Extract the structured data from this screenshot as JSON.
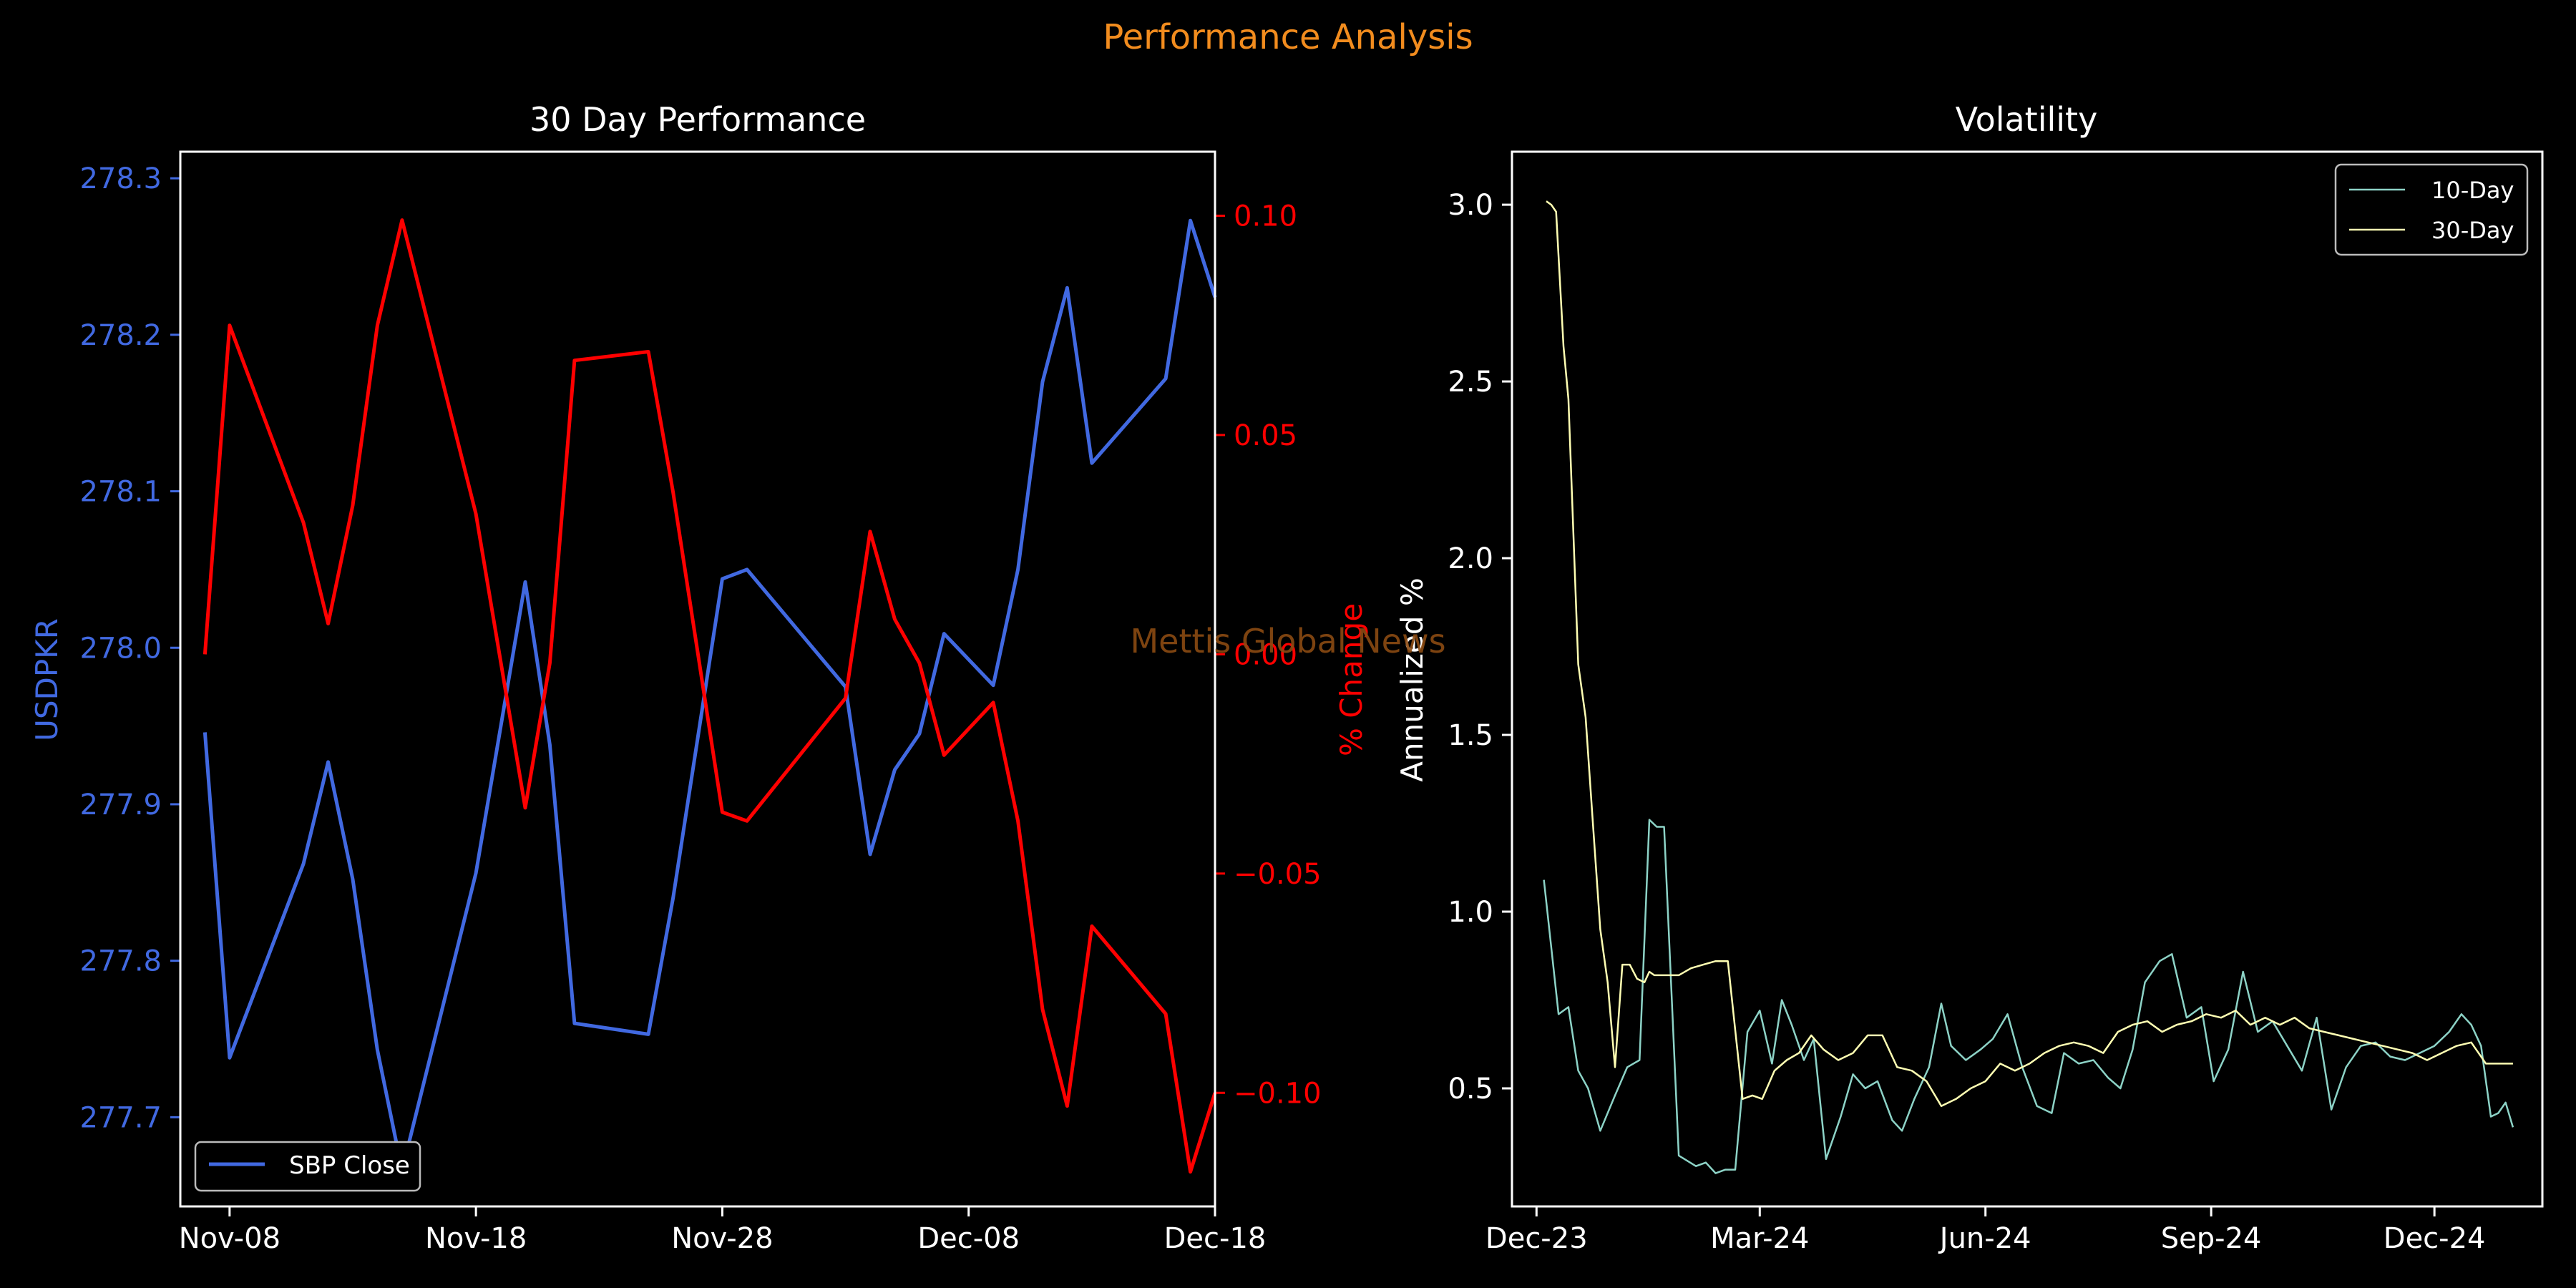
{
  "suptitle": "Performance Analysis",
  "watermark": "Mettis Global News",
  "colors": {
    "background": "#000000",
    "axes": "#ffffff",
    "price": "#4169e1",
    "change": "#ff0000",
    "title": "#f28c1e",
    "watermark": "#8b4a12",
    "vol10": "#8dd3c7",
    "vol30": "#ffffb3"
  },
  "chart_data": [
    {
      "type": "line",
      "title": "30 Day Performance",
      "ylabel": "USDPKR",
      "y2label": "% Change",
      "ylim": [
        277.643,
        278.317
      ],
      "y2lim": [
        -0.1259,
        0.1146
      ],
      "yticks": [
        "277.7",
        "277.8",
        "277.9",
        "278.0",
        "278.1",
        "278.2",
        "278.3"
      ],
      "y2ticks": [
        "−0.10",
        "−0.05",
        "0.00",
        "0.05",
        "0.10"
      ],
      "xticks": [
        "Nov-08",
        "Nov-18",
        "Nov-28",
        "Dec-08",
        "Dec-18"
      ],
      "xlim": [
        "2024-11-06",
        "2024-12-18"
      ],
      "legend": "lower-left",
      "series": [
        {
          "name": "SBP Close",
          "axis": "left",
          "x": [
            "2024-11-07",
            "2024-11-08",
            "2024-11-11",
            "2024-11-12",
            "2024-11-13",
            "2024-11-14",
            "2024-11-15",
            "2024-11-18",
            "2024-11-20",
            "2024-11-21",
            "2024-11-22",
            "2024-11-25",
            "2024-11-26",
            "2024-11-28",
            "2024-11-29",
            "2024-12-03",
            "2024-12-04",
            "2024-12-05",
            "2024-12-06",
            "2024-12-07",
            "2024-12-09",
            "2024-12-10",
            "2024-12-11",
            "2024-12-12",
            "2024-12-13",
            "2024-12-16",
            "2024-12-17",
            "2024-12-18"
          ],
          "values": [
            277.946,
            277.738,
            277.862,
            277.927,
            277.852,
            277.743,
            277.666,
            277.856,
            278.042,
            277.938,
            277.76,
            277.753,
            277.84,
            278.044,
            278.05,
            277.975,
            277.868,
            277.922,
            277.945,
            278.009,
            277.976,
            278.05,
            278.17,
            278.23,
            278.118,
            278.172,
            278.273,
            278.224
          ]
        },
        {
          "name": "% Change",
          "axis": "right",
          "x": [
            "2024-11-07",
            "2024-11-08",
            "2024-11-11",
            "2024-11-12",
            "2024-11-13",
            "2024-11-14",
            "2024-11-15",
            "2024-11-18",
            "2024-11-20",
            "2024-11-21",
            "2024-11-22",
            "2024-11-25",
            "2024-11-26",
            "2024-11-28",
            "2024-11-29",
            "2024-12-03",
            "2024-12-04",
            "2024-12-05",
            "2024-12-06",
            "2024-12-07",
            "2024-12-09",
            "2024-12-10",
            "2024-12-11",
            "2024-12-12",
            "2024-12-13",
            "2024-12-16",
            "2024-12-17",
            "2024-12-18"
          ],
          "values": [
            0.0,
            0.075,
            0.03,
            0.007,
            0.034,
            0.075,
            0.099,
            0.032,
            -0.035,
            -0.002,
            0.067,
            0.069,
            0.037,
            -0.036,
            -0.038,
            -0.01,
            0.028,
            0.008,
            -0.002,
            -0.023,
            -0.011,
            -0.038,
            -0.081,
            -0.103,
            -0.062,
            -0.082,
            -0.118,
            -0.1
          ]
        }
      ]
    },
    {
      "type": "line",
      "title": "Volatility",
      "ylabel": "Annualized %",
      "ylim": [
        0.166,
        3.15
      ],
      "yticks": [
        "0.5",
        "1.0",
        "1.5",
        "2.0",
        "2.5",
        "3.0"
      ],
      "xticks": [
        "Dec-23",
        "Mar-24",
        "Jun-24",
        "Sep-24",
        "Dec-24"
      ],
      "xlim": [
        "2023-11-21",
        "2025-01-14"
      ],
      "legend": "upper-right",
      "series": [
        {
          "name": "10-Day",
          "x": [
            "2023-12-04",
            "2023-12-10",
            "2023-12-14",
            "2023-12-18",
            "2023-12-22",
            "2023-12-27",
            "2024-01-02",
            "2024-01-07",
            "2024-01-12",
            "2024-01-16",
            "2024-01-19",
            "2024-01-22",
            "2024-01-28",
            "2024-02-04",
            "2024-02-08",
            "2024-02-12",
            "2024-02-16",
            "2024-02-20",
            "2024-02-25",
            "2024-03-01",
            "2024-03-06",
            "2024-03-10",
            "2024-03-14",
            "2024-03-19",
            "2024-03-23",
            "2024-03-28",
            "2024-04-03",
            "2024-04-08",
            "2024-04-13",
            "2024-04-18",
            "2024-04-24",
            "2024-04-28",
            "2024-05-03",
            "2024-05-09",
            "2024-05-14",
            "2024-05-18",
            "2024-05-24",
            "2024-05-30",
            "2024-06-04",
            "2024-06-10",
            "2024-06-16",
            "2024-06-22",
            "2024-06-28",
            "2024-07-03",
            "2024-07-09",
            "2024-07-15",
            "2024-07-21",
            "2024-07-26",
            "2024-07-31",
            "2024-08-05",
            "2024-08-11",
            "2024-08-16",
            "2024-08-22",
            "2024-08-28",
            "2024-09-02",
            "2024-09-08",
            "2024-09-14",
            "2024-09-20",
            "2024-09-26",
            "2024-10-02",
            "2024-10-08",
            "2024-10-14",
            "2024-10-20",
            "2024-10-26",
            "2024-11-01",
            "2024-11-07",
            "2024-11-13",
            "2024-11-19",
            "2024-11-25",
            "2024-12-01",
            "2024-12-07",
            "2024-12-12",
            "2024-12-16",
            "2024-12-20",
            "2024-12-24",
            "2024-12-27",
            "2024-12-30",
            "2025-01-02"
          ],
          "values": [
            1.09,
            0.71,
            0.73,
            0.55,
            0.5,
            0.38,
            0.48,
            0.56,
            0.58,
            1.26,
            1.24,
            1.24,
            0.31,
            0.28,
            0.29,
            0.26,
            0.27,
            0.27,
            0.66,
            0.72,
            0.57,
            0.75,
            0.68,
            0.58,
            0.64,
            0.3,
            0.42,
            0.54,
            0.5,
            0.52,
            0.41,
            0.38,
            0.47,
            0.56,
            0.74,
            0.62,
            0.58,
            0.61,
            0.64,
            0.71,
            0.56,
            0.45,
            0.43,
            0.6,
            0.57,
            0.58,
            0.53,
            0.5,
            0.61,
            0.8,
            0.86,
            0.88,
            0.7,
            0.73,
            0.52,
            0.61,
            0.83,
            0.66,
            0.69,
            0.62,
            0.55,
            0.7,
            0.44,
            0.56,
            0.62,
            0.63,
            0.59,
            0.58,
            0.6,
            0.62,
            0.66,
            0.71,
            0.68,
            0.62,
            0.42,
            0.43,
            0.46,
            0.39
          ]
        },
        {
          "name": "30-Day",
          "x": [
            "2023-12-05",
            "2023-12-07",
            "2023-12-09",
            "2023-12-12",
            "2023-12-14",
            "2023-12-18",
            "2023-12-21",
            "2023-12-24",
            "2023-12-27",
            "2023-12-30",
            "2024-01-02",
            "2024-01-05",
            "2024-01-08",
            "2024-01-11",
            "2024-01-14",
            "2024-01-16",
            "2024-01-18",
            "2024-01-23",
            "2024-01-28",
            "2024-02-02",
            "2024-02-07",
            "2024-02-12",
            "2024-02-17",
            "2024-02-23",
            "2024-02-27",
            "2024-03-02",
            "2024-03-07",
            "2024-03-12",
            "2024-03-17",
            "2024-03-22",
            "2024-03-27",
            "2024-04-02",
            "2024-04-08",
            "2024-04-14",
            "2024-04-20",
            "2024-04-26",
            "2024-05-02",
            "2024-05-08",
            "2024-05-14",
            "2024-05-20",
            "2024-05-26",
            "2024-06-01",
            "2024-06-07",
            "2024-06-13",
            "2024-06-19",
            "2024-06-25",
            "2024-07-01",
            "2024-07-07",
            "2024-07-13",
            "2024-07-19",
            "2024-07-25",
            "2024-07-31",
            "2024-08-06",
            "2024-08-12",
            "2024-08-18",
            "2024-08-24",
            "2024-08-30",
            "2024-09-05",
            "2024-09-11",
            "2024-09-17",
            "2024-09-23",
            "2024-09-29",
            "2024-10-05",
            "2024-10-11",
            "2024-10-17",
            "2024-10-23",
            "2024-10-29",
            "2024-11-04",
            "2024-11-10",
            "2024-11-16",
            "2024-11-22",
            "2024-11-28",
            "2024-12-04",
            "2024-12-10",
            "2024-12-16",
            "2024-12-22",
            "2024-12-28",
            "2025-01-02"
          ],
          "values": [
            3.01,
            3.0,
            2.98,
            2.6,
            2.45,
            1.7,
            1.55,
            1.25,
            0.95,
            0.8,
            0.56,
            0.85,
            0.85,
            0.81,
            0.8,
            0.83,
            0.82,
            0.82,
            0.82,
            0.84,
            0.85,
            0.86,
            0.86,
            0.47,
            0.48,
            0.47,
            0.55,
            0.58,
            0.6,
            0.65,
            0.61,
            0.58,
            0.6,
            0.65,
            0.65,
            0.56,
            0.55,
            0.52,
            0.45,
            0.47,
            0.5,
            0.52,
            0.57,
            0.55,
            0.57,
            0.6,
            0.62,
            0.63,
            0.62,
            0.6,
            0.66,
            0.68,
            0.69,
            0.66,
            0.68,
            0.69,
            0.71,
            0.7,
            0.72,
            0.68,
            0.7,
            0.68,
            0.7,
            0.67,
            0.66,
            0.65,
            0.64,
            0.63,
            0.62,
            0.61,
            0.6,
            0.58,
            0.6,
            0.62,
            0.63,
            0.57,
            0.57,
            0.57
          ]
        }
      ]
    }
  ]
}
